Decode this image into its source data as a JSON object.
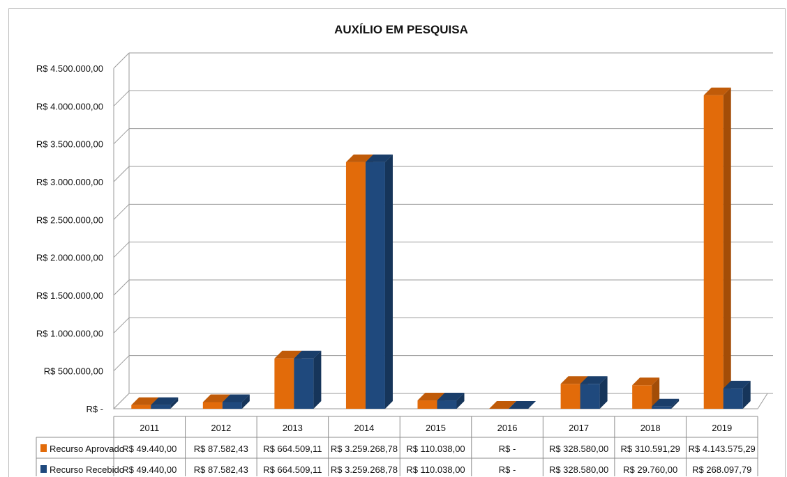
{
  "chart_data": {
    "type": "bar",
    "title": "AUXÍLIO EM PESQUISA",
    "categories": [
      "2011",
      "2012",
      "2013",
      "2014",
      "2015",
      "2016",
      "2017",
      "2018",
      "2019"
    ],
    "ylim": [
      0,
      4500000
    ],
    "y_ticks": [
      "R$ -",
      "R$ 500.000,00",
      "R$ 1.000.000,00",
      "R$ 1.500.000,00",
      "R$ 2.000.000,00",
      "R$ 2.500.000,00",
      "R$ 3.000.000,00",
      "R$ 3.500.000,00",
      "R$ 4.000.000,00",
      "R$ 4.500.000,00"
    ],
    "grid": true,
    "legend_placement": "data-table",
    "series": [
      {
        "name": "Recurso Aprovado",
        "color": "#E26B0A",
        "values": [
          49440.0,
          87582.43,
          664509.11,
          3259268.78,
          110038.0,
          0,
          328580.0,
          310591.29,
          4143575.29
        ],
        "labels": [
          "R$ 49.440,00",
          "R$ 87.582,43",
          "R$ 664.509,11",
          "R$ 3.259.268,78",
          "R$ 110.038,00",
          "R$ -",
          "R$ 328.580,00",
          "R$ 310.591,29",
          "R$ 4.143.575,29"
        ]
      },
      {
        "name": "Recurso Recebido",
        "color": "#1F497D",
        "values": [
          49440.0,
          87582.43,
          664509.11,
          3259268.78,
          110038.0,
          0,
          328580.0,
          29760.0,
          268097.79
        ],
        "labels": [
          "R$ 49.440,00",
          "R$ 87.582,43",
          "R$ 664.509,11",
          "R$ 3.259.268,78",
          "R$ 110.038,00",
          "R$ -",
          "R$ 328.580,00",
          "R$ 29.760,00",
          "R$ 268.097,79"
        ]
      }
    ]
  }
}
